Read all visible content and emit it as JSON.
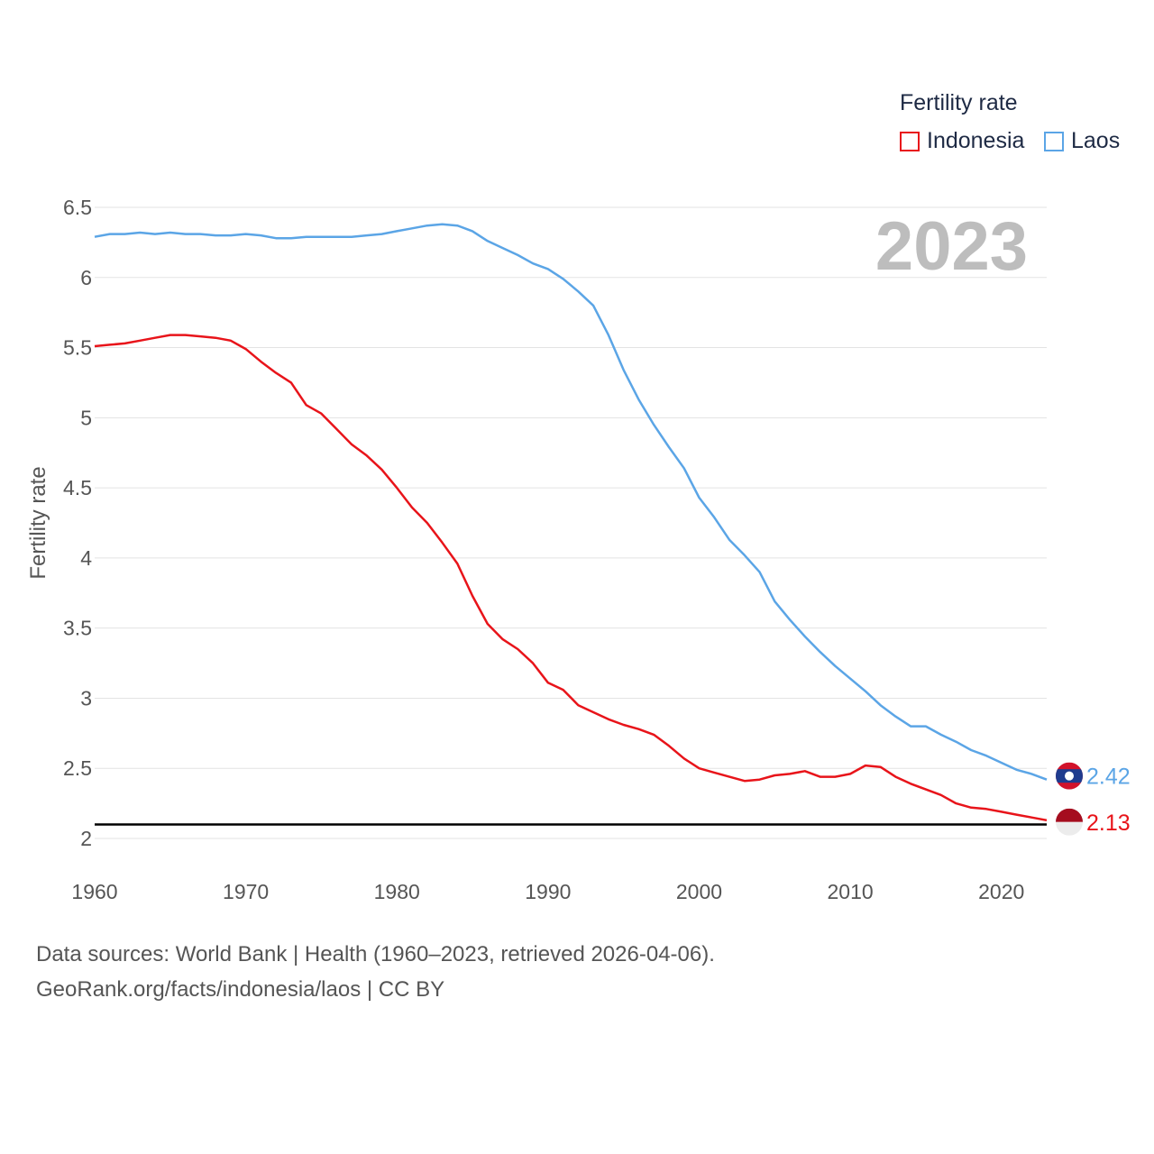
{
  "legend": {
    "title": "Fertility rate",
    "items": [
      {
        "name": "Indonesia",
        "color": "#e8141a"
      },
      {
        "name": "Laos",
        "color": "#5ba5e6"
      }
    ]
  },
  "footer": {
    "line1": "Data sources: World Bank | Health (1960–2023, retrieved 2026-04-06).",
    "line2": "GeoRank.org/facts/indonesia/laos | CC BY"
  },
  "chart_data": {
    "type": "line",
    "title": "Fertility rate",
    "year_label": "2023",
    "xlabel": "",
    "ylabel": "Fertility rate",
    "xlim": [
      1960,
      2023
    ],
    "ylim": [
      2,
      6.5
    ],
    "x_ticks": [
      "1960",
      "1970",
      "1980",
      "1990",
      "2000",
      "2010",
      "2020"
    ],
    "y_ticks": [
      "2",
      "2.5",
      "3",
      "3.5",
      "4",
      "4.5",
      "5",
      "5.5",
      "6",
      "6.5"
    ],
    "reference_line": {
      "y": 2.1,
      "color": "#000000"
    },
    "x": [
      1960,
      1961,
      1962,
      1963,
      1964,
      1965,
      1966,
      1967,
      1968,
      1969,
      1970,
      1971,
      1972,
      1973,
      1974,
      1975,
      1976,
      1977,
      1978,
      1979,
      1980,
      1981,
      1982,
      1983,
      1984,
      1985,
      1986,
      1987,
      1988,
      1989,
      1990,
      1991,
      1992,
      1993,
      1994,
      1995,
      1996,
      1997,
      1998,
      1999,
      2000,
      2001,
      2002,
      2003,
      2004,
      2005,
      2006,
      2007,
      2008,
      2009,
      2010,
      2011,
      2012,
      2013,
      2014,
      2015,
      2016,
      2017,
      2018,
      2019,
      2020,
      2021,
      2022,
      2023
    ],
    "series": [
      {
        "name": "Indonesia",
        "color": "#e8141a",
        "end_label": "2.13",
        "values": [
          5.51,
          5.52,
          5.53,
          5.55,
          5.57,
          5.59,
          5.59,
          5.58,
          5.57,
          5.55,
          5.49,
          5.4,
          5.32,
          5.25,
          5.09,
          5.03,
          4.92,
          4.81,
          4.73,
          4.63,
          4.5,
          4.36,
          4.25,
          4.11,
          3.96,
          3.73,
          3.53,
          3.42,
          3.35,
          3.25,
          3.11,
          3.06,
          2.95,
          2.9,
          2.85,
          2.81,
          2.78,
          2.74,
          2.66,
          2.57,
          2.5,
          2.47,
          2.44,
          2.41,
          2.42,
          2.45,
          2.46,
          2.48,
          2.44,
          2.44,
          2.46,
          2.52,
          2.51,
          2.44,
          2.39,
          2.35,
          2.31,
          2.25,
          2.22,
          2.21,
          2.19,
          2.17,
          2.15,
          2.13
        ]
      },
      {
        "name": "Laos",
        "color": "#5ba5e6",
        "end_label": "2.42",
        "values": [
          6.29,
          6.31,
          6.31,
          6.32,
          6.31,
          6.32,
          6.31,
          6.31,
          6.3,
          6.3,
          6.31,
          6.3,
          6.28,
          6.28,
          6.29,
          6.29,
          6.29,
          6.29,
          6.3,
          6.31,
          6.33,
          6.35,
          6.37,
          6.38,
          6.37,
          6.33,
          6.26,
          6.21,
          6.16,
          6.1,
          6.06,
          5.99,
          5.9,
          5.8,
          5.59,
          5.34,
          5.13,
          4.95,
          4.79,
          4.64,
          4.43,
          4.29,
          4.13,
          4.02,
          3.9,
          3.69,
          3.56,
          3.44,
          3.33,
          3.23,
          3.14,
          3.05,
          2.95,
          2.87,
          2.8,
          2.8,
          2.74,
          2.69,
          2.63,
          2.59,
          2.54,
          2.49,
          2.46,
          2.42
        ]
      }
    ]
  }
}
